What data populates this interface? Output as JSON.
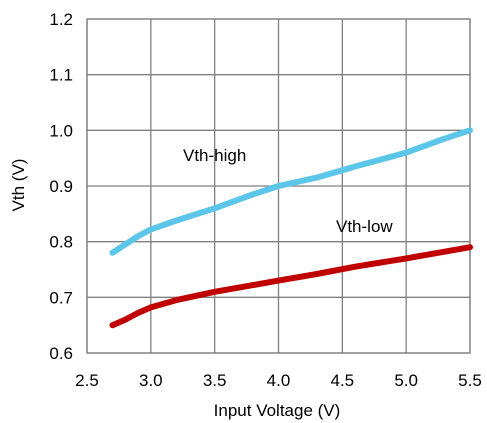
{
  "chart_data": {
    "type": "line",
    "xlabel": "Input Voltage (V)",
    "ylabel": "Vth (V)",
    "xlim": [
      2.5,
      5.5
    ],
    "ylim": [
      0.6,
      1.2
    ],
    "x_ticks": [
      "2.5",
      "3.0",
      "3.5",
      "4.0",
      "4.5",
      "5.0",
      "5.5"
    ],
    "y_ticks": [
      "0.6",
      "0.7",
      "0.8",
      "0.9",
      "1.0",
      "1.1",
      "1.2"
    ],
    "grid": true,
    "series": [
      {
        "name": "Vth-high",
        "color": "#5BC5EA",
        "x": [
          2.7,
          2.8,
          2.9,
          3.0,
          3.2,
          3.5,
          3.8,
          4.0,
          4.3,
          4.6,
          5.0,
          5.3,
          5.5
        ],
        "y": [
          0.78,
          0.795,
          0.81,
          0.822,
          0.838,
          0.86,
          0.885,
          0.9,
          0.915,
          0.935,
          0.96,
          0.985,
          1.0
        ]
      },
      {
        "name": "Vth-low",
        "color": "#C00000",
        "x": [
          2.7,
          2.8,
          2.9,
          3.0,
          3.2,
          3.5,
          3.8,
          4.0,
          4.3,
          4.6,
          5.0,
          5.3,
          5.5
        ],
        "y": [
          0.65,
          0.66,
          0.672,
          0.682,
          0.695,
          0.71,
          0.722,
          0.73,
          0.742,
          0.755,
          0.77,
          0.782,
          0.79
        ]
      }
    ]
  }
}
